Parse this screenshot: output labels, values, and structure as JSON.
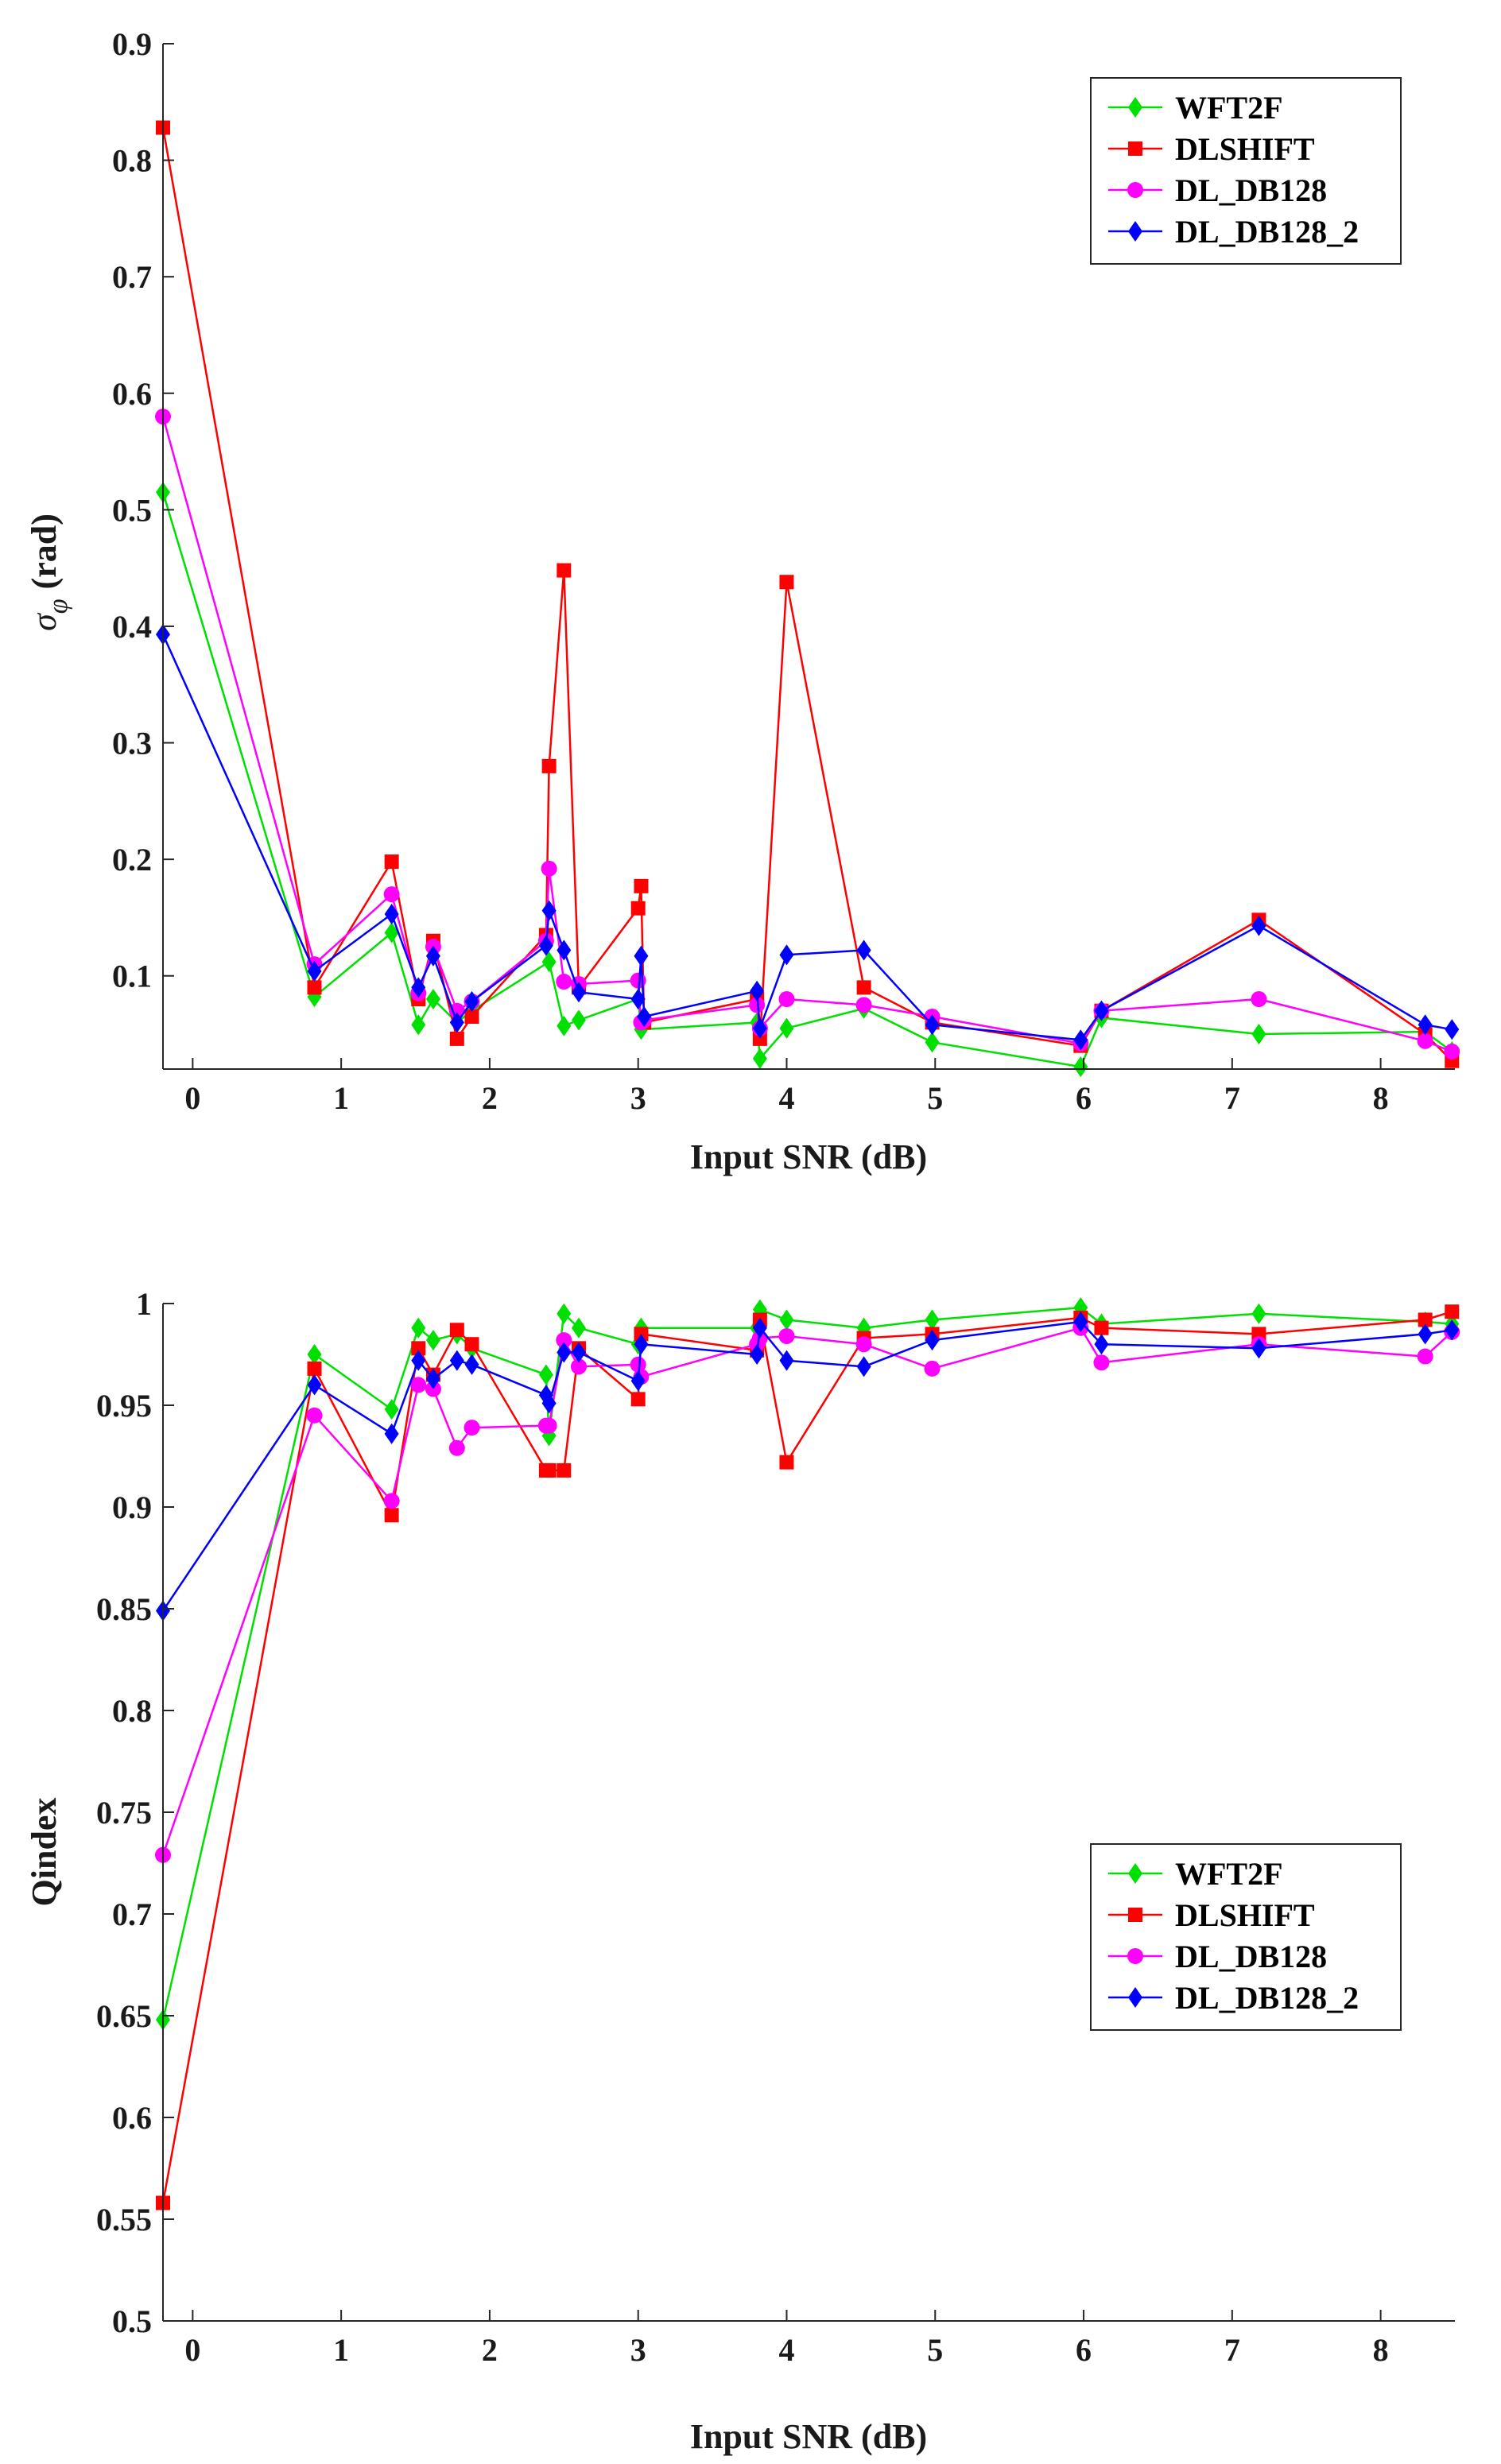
{
  "colors": {
    "WFT2F": "#00e000",
    "DLSHIFT": "#ff0000",
    "DL_DB128": "#ff00ff",
    "DL_DB128_2": "#0000ff",
    "axis": "#262626"
  },
  "chart_data": [
    {
      "type": "line",
      "title": "",
      "xlabel": "Input SNR (dB)",
      "ylabel": "σ_φ (rad)",
      "ylabel_main": "σ",
      "ylabel_sub": "φ",
      "ylabel_unit": "(rad)",
      "xlim": [
        -0.2,
        8.5
      ],
      "ylim": [
        0.02,
        0.9
      ],
      "xticks": [
        0,
        1,
        2,
        3,
        4,
        5,
        6,
        7,
        8
      ],
      "xtick_labels": [
        "0",
        "1",
        "2",
        "3",
        "4",
        "5",
        "6",
        "7",
        "8"
      ],
      "yticks": [
        0.1,
        0.2,
        0.3,
        0.4,
        0.5,
        0.6,
        0.7,
        0.8,
        0.9
      ],
      "ytick_labels": [
        "0.1",
        "0.2",
        "0.3",
        "0.4",
        "0.5",
        "0.6",
        "0.7",
        "0.8",
        "0.9"
      ],
      "legend_position": "top-right",
      "series": [
        {
          "name": "WFT2F",
          "marker": "diamond",
          "x": [
            -0.2,
            0.82,
            1.34,
            1.52,
            1.62,
            1.78,
            1.88,
            2.4,
            2.5,
            2.6,
            3.0,
            3.02,
            3.8,
            3.82,
            4.0,
            4.52,
            4.98,
            5.98,
            6.12,
            7.18,
            8.3,
            8.48
          ],
          "y": [
            0.515,
            0.082,
            0.137,
            0.058,
            0.08,
            0.06,
            0.07,
            0.112,
            0.057,
            0.062,
            0.08,
            0.054,
            0.06,
            0.029,
            0.055,
            0.072,
            0.043,
            0.022,
            0.064,
            0.05,
            0.052,
            0.035
          ]
        },
        {
          "name": "DLSHIFT",
          "marker": "square",
          "x": [
            -0.2,
            0.82,
            1.34,
            1.52,
            1.62,
            1.78,
            1.88,
            2.38,
            2.4,
            2.5,
            2.6,
            3.0,
            3.02,
            3.04,
            3.8,
            3.82,
            4.0,
            4.52,
            4.98,
            5.98,
            6.12,
            7.18,
            8.3,
            8.48
          ],
          "y": [
            0.828,
            0.09,
            0.198,
            0.08,
            0.13,
            0.046,
            0.065,
            0.135,
            0.28,
            0.448,
            0.09,
            0.158,
            0.177,
            0.06,
            0.08,
            0.046,
            0.438,
            0.09,
            0.06,
            0.04,
            0.07,
            0.148,
            0.05,
            0.027
          ]
        },
        {
          "name": "DL_DB128",
          "marker": "circle",
          "x": [
            -0.2,
            0.82,
            1.34,
            1.52,
            1.62,
            1.78,
            1.88,
            2.38,
            2.4,
            2.5,
            2.6,
            3.0,
            3.02,
            3.04,
            3.8,
            3.82,
            4.0,
            4.52,
            4.98,
            5.98,
            6.12,
            7.18,
            8.3,
            8.48
          ],
          "y": [
            0.58,
            0.11,
            0.17,
            0.085,
            0.125,
            0.07,
            0.078,
            0.13,
            0.192,
            0.095,
            0.093,
            0.096,
            0.06,
            0.062,
            0.075,
            0.055,
            0.08,
            0.075,
            0.065,
            0.042,
            0.07,
            0.08,
            0.044,
            0.035
          ]
        },
        {
          "name": "DL_DB128_2",
          "marker": "diamond",
          "x": [
            -0.2,
            0.82,
            1.34,
            1.52,
            1.62,
            1.78,
            1.88,
            2.38,
            2.4,
            2.5,
            2.6,
            3.0,
            3.02,
            3.04,
            3.8,
            3.82,
            4.0,
            4.52,
            4.98,
            5.98,
            6.12,
            7.18,
            8.3,
            8.48
          ],
          "y": [
            0.393,
            0.104,
            0.153,
            0.09,
            0.117,
            0.06,
            0.078,
            0.126,
            0.156,
            0.122,
            0.086,
            0.08,
            0.117,
            0.065,
            0.087,
            0.055,
            0.118,
            0.122,
            0.058,
            0.045,
            0.07,
            0.143,
            0.058,
            0.054
          ]
        }
      ],
      "legend": [
        "WFT2F",
        "DLSHIFT",
        "DL_DB128",
        "DL_DB128_2"
      ]
    },
    {
      "type": "line",
      "title": "",
      "xlabel": "Input SNR (dB)",
      "ylabel": "Qindex",
      "xlim": [
        -0.2,
        8.5
      ],
      "ylim": [
        0.5,
        1.0
      ],
      "xticks": [
        0,
        1,
        2,
        3,
        4,
        5,
        6,
        7,
        8
      ],
      "xtick_labels": [
        "0",
        "1",
        "2",
        "3",
        "4",
        "5",
        "6",
        "7",
        "8"
      ],
      "yticks": [
        0.5,
        0.55,
        0.6,
        0.65,
        0.7,
        0.75,
        0.8,
        0.85,
        0.9,
        0.95,
        1.0
      ],
      "ytick_labels": [
        "0.5",
        "0.55",
        "0.6",
        "0.65",
        "0.7",
        "0.75",
        "0.8",
        "0.85",
        "0.9",
        "0.95",
        "1"
      ],
      "legend_position": "bottom-right",
      "series": [
        {
          "name": "WFT2F",
          "marker": "diamond",
          "x": [
            -0.2,
            0.82,
            1.34,
            1.52,
            1.62,
            1.78,
            1.88,
            2.38,
            2.4,
            2.5,
            2.6,
            3.0,
            3.02,
            3.8,
            3.82,
            4.0,
            4.52,
            4.98,
            5.98,
            6.12,
            7.18,
            8.3,
            8.48
          ],
          "y": [
            0.648,
            0.975,
            0.948,
            0.988,
            0.982,
            0.985,
            0.978,
            0.965,
            0.935,
            0.995,
            0.988,
            0.98,
            0.988,
            0.988,
            0.997,
            0.992,
            0.988,
            0.992,
            0.998,
            0.99,
            0.995,
            0.991,
            0.99
          ]
        },
        {
          "name": "DLSHIFT",
          "marker": "square",
          "x": [
            -0.2,
            0.82,
            1.34,
            1.52,
            1.62,
            1.78,
            1.88,
            2.38,
            2.4,
            2.5,
            2.6,
            3.0,
            3.02,
            3.8,
            3.82,
            4.0,
            4.52,
            4.98,
            5.98,
            6.12,
            7.18,
            8.3,
            8.48
          ],
          "y": [
            0.558,
            0.968,
            0.896,
            0.978,
            0.965,
            0.987,
            0.98,
            0.918,
            0.918,
            0.918,
            0.978,
            0.953,
            0.985,
            0.977,
            0.992,
            0.922,
            0.983,
            0.985,
            0.993,
            0.988,
            0.985,
            0.992,
            0.996
          ]
        },
        {
          "name": "DL_DB128",
          "marker": "circle",
          "x": [
            -0.2,
            0.82,
            1.34,
            1.52,
            1.62,
            1.78,
            1.88,
            2.38,
            2.4,
            2.5,
            2.6,
            3.0,
            3.02,
            3.8,
            3.82,
            4.0,
            4.52,
            4.98,
            5.98,
            6.12,
            7.18,
            8.3,
            8.48
          ],
          "y": [
            0.729,
            0.945,
            0.903,
            0.96,
            0.958,
            0.929,
            0.939,
            0.94,
            0.94,
            0.982,
            0.969,
            0.97,
            0.964,
            0.98,
            0.983,
            0.984,
            0.98,
            0.968,
            0.988,
            0.971,
            0.98,
            0.974,
            0.986
          ]
        },
        {
          "name": "DL_DB128_2",
          "marker": "diamond",
          "x": [
            -0.2,
            0.82,
            1.34,
            1.52,
            1.62,
            1.78,
            1.88,
            2.38,
            2.4,
            2.5,
            2.6,
            3.0,
            3.02,
            3.8,
            3.82,
            4.0,
            4.52,
            4.98,
            5.98,
            6.12,
            7.18,
            8.3,
            8.48
          ],
          "y": [
            0.849,
            0.96,
            0.936,
            0.972,
            0.963,
            0.972,
            0.97,
            0.955,
            0.951,
            0.976,
            0.976,
            0.962,
            0.98,
            0.975,
            0.988,
            0.972,
            0.969,
            0.982,
            0.991,
            0.98,
            0.978,
            0.985,
            0.987
          ]
        }
      ],
      "legend": [
        "WFT2F",
        "DLSHIFT",
        "DL_DB128",
        "DL_DB128_2"
      ]
    }
  ]
}
